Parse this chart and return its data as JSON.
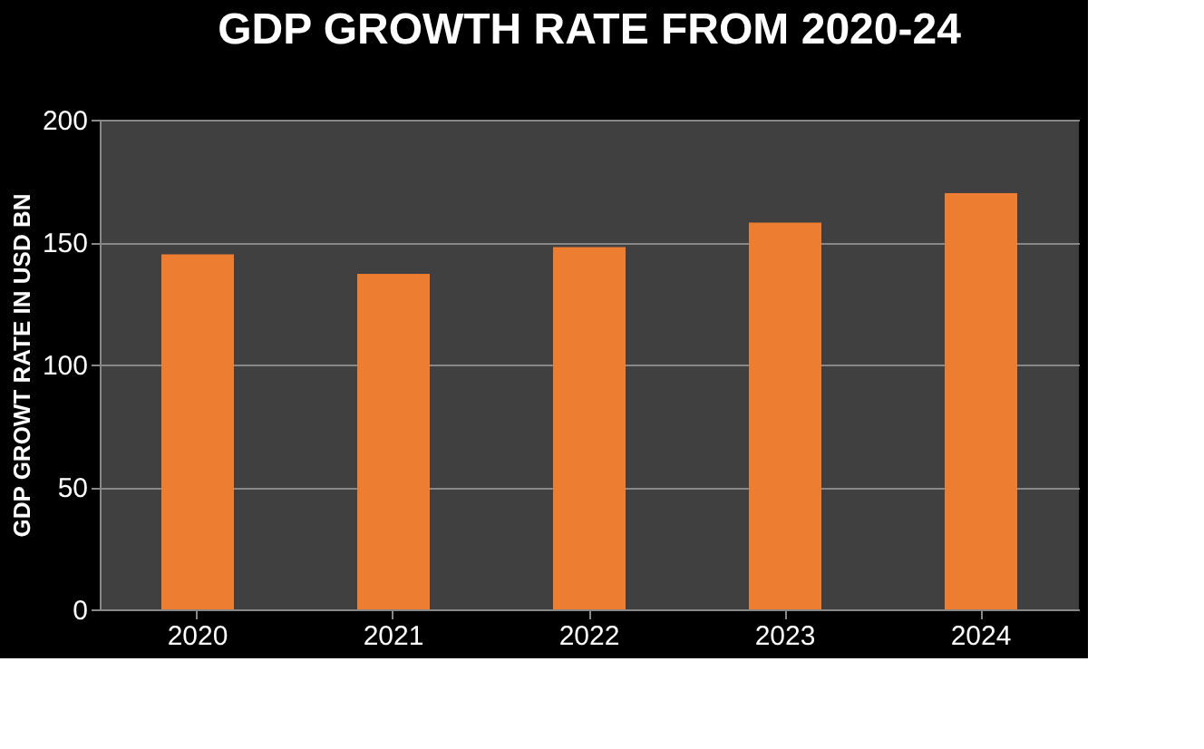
{
  "chart_data": {
    "type": "bar",
    "title": "GDP GROWTH RATE FROM 2020-24",
    "ylabel": "GDP GROWT RATE IN USD BN",
    "categories": [
      "2020",
      "2021",
      "2022",
      "2023",
      "2024"
    ],
    "values": [
      145,
      137,
      148,
      158,
      170
    ],
    "color": "#ed7d31",
    "ylim": [
      0,
      200
    ],
    "yticks": [
      0,
      50,
      100,
      150,
      200
    ],
    "grid": "y"
  }
}
